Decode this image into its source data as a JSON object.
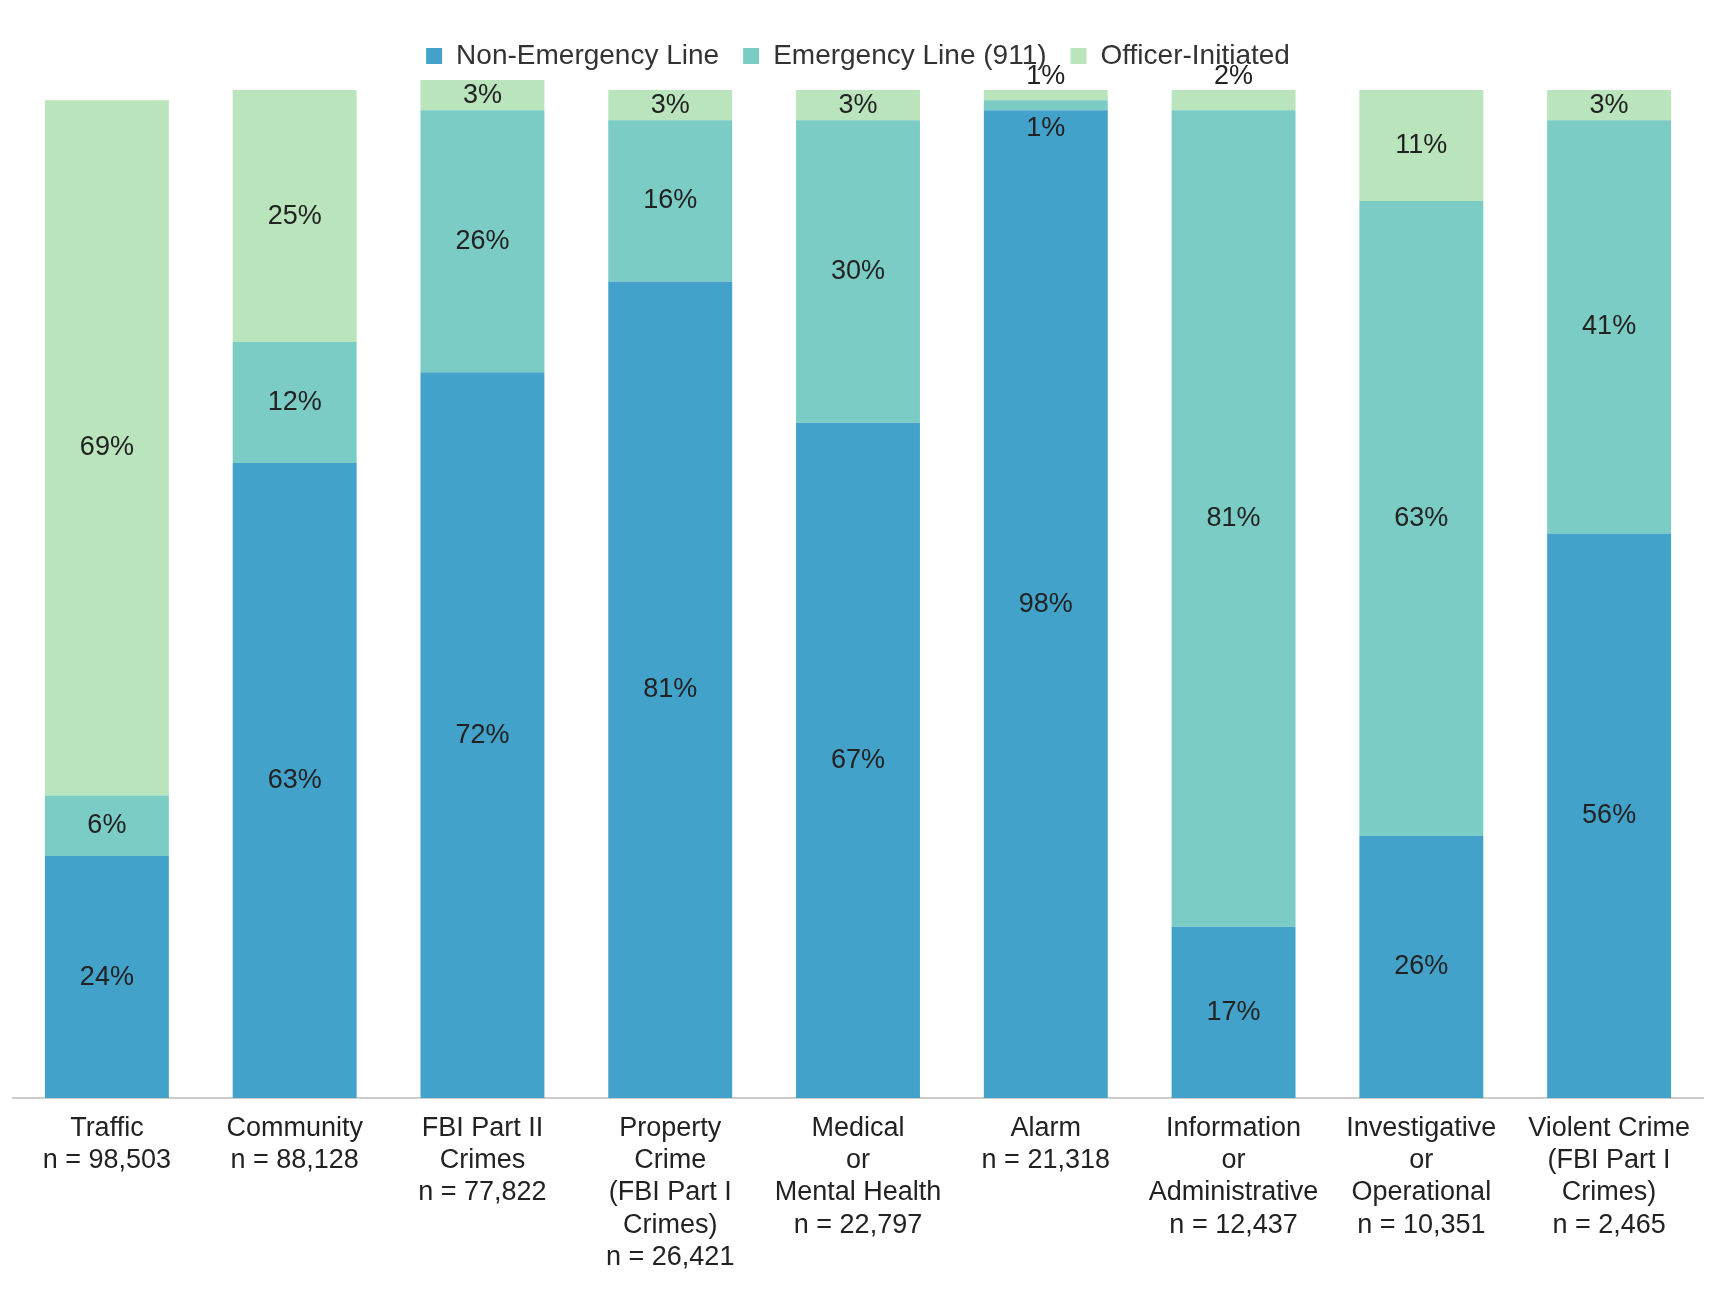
{
  "chart_data": {
    "type": "bar",
    "stacked": true,
    "legend": "top",
    "grid": false,
    "categories": [
      "Traffic\nn = 98,503",
      "Community\nn = 88,128",
      "FBI Part II\nCrimes\nn = 77,822",
      "Property\nCrime\n(FBI Part I\nCrimes)\nn = 26,421",
      "Medical\nor\nMental Health\nn = 22,797",
      "Alarm\nn = 21,318",
      "Information\nor\nAdministrative\nn = 12,437",
      "Investigative\nor\nOperational\nn = 10,351",
      "Violent Crime\n(FBI Part I\nCrimes)\nn = 2,465"
    ],
    "series": [
      {
        "name": "Non-Emergency Line",
        "color": "#43a2ca",
        "values": [
          24,
          63,
          72,
          81,
          67,
          98,
          17,
          26,
          56
        ],
        "value_labels": [
          "24%",
          "63%",
          "72%",
          "81%",
          "67%",
          "98%",
          "17%",
          "26%",
          "56%"
        ]
      },
      {
        "name": "Emergency Line (911)",
        "color": "#7bccc4",
        "values": [
          6,
          12,
          26,
          16,
          30,
          1,
          81,
          63,
          41
        ],
        "value_labels": [
          "6%",
          "12%",
          "26%",
          "16%",
          "30%",
          "1%",
          "81%",
          "63%",
          "41%"
        ]
      },
      {
        "name": "Officer-Initiated",
        "color": "#bae4bc",
        "values": [
          69,
          25,
          3,
          3,
          3,
          1,
          2,
          11,
          3
        ],
        "value_labels": [
          "69%",
          "25%",
          "3%",
          "3%",
          "3%",
          "1%",
          "2%",
          "11%",
          "3%"
        ]
      }
    ]
  }
}
